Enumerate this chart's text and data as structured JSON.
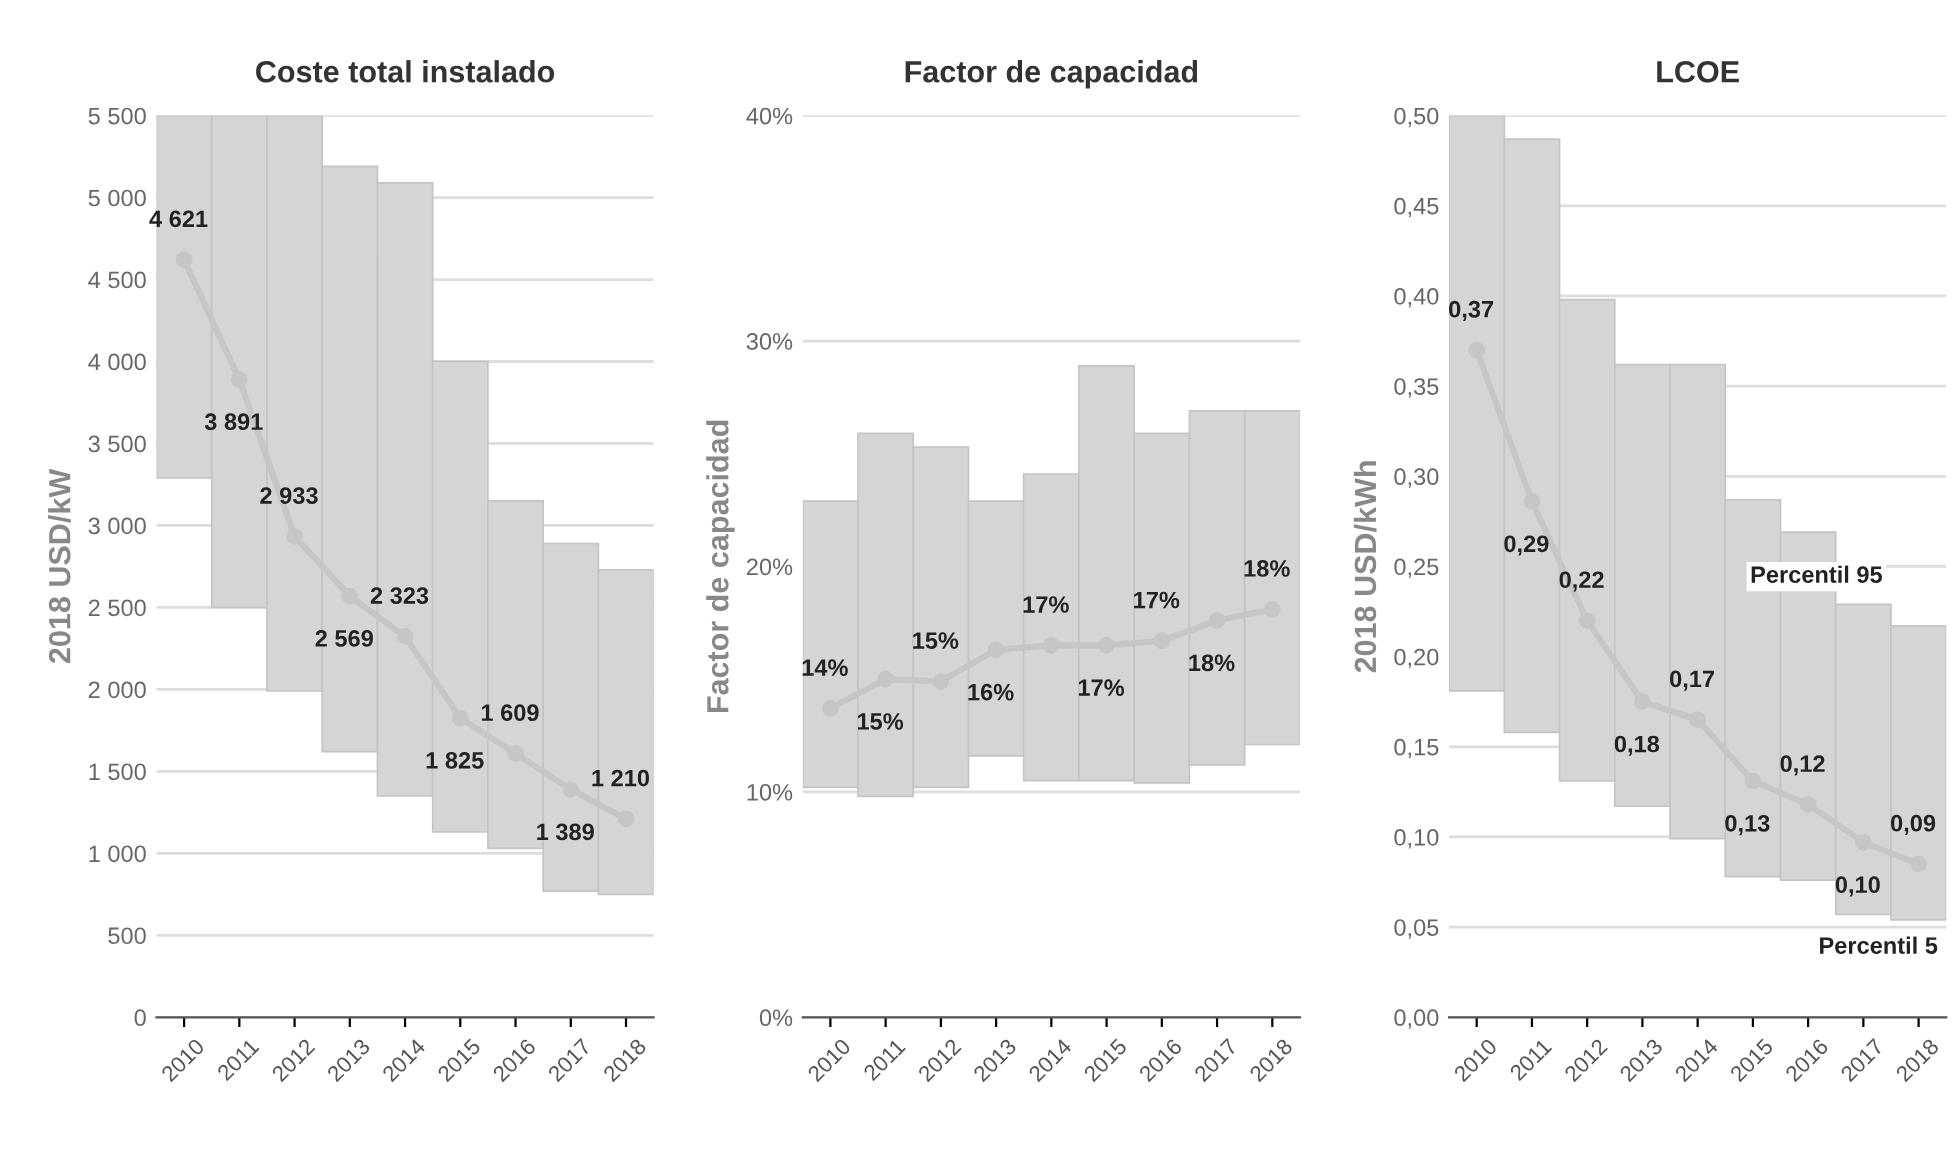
{
  "chart_data": [
    {
      "type": "bar",
      "title": "Coste total instalado",
      "ylabel": "2018 USD/kW",
      "categories": [
        "2010",
        "2011",
        "2012",
        "2013",
        "2014",
        "2015",
        "2016",
        "2017",
        "2018"
      ],
      "ylim": [
        0,
        5500
      ],
      "yticks": [
        0,
        500,
        {
          "value": 1000,
          "label": "1 000"
        },
        {
          "value": 1500,
          "label": "1 500"
        },
        {
          "value": 2000,
          "label": "2 000"
        },
        {
          "value": 2500,
          "label": "2 500"
        },
        {
          "value": 3000,
          "label": "3 000"
        },
        {
          "value": 3500,
          "label": "3 500"
        },
        {
          "value": 4000,
          "label": "4 000"
        },
        {
          "value": 4500,
          "label": "4 500"
        },
        {
          "value": 5000,
          "label": "5 000"
        },
        {
          "value": 5500,
          "label": "5 500"
        }
      ],
      "grid": "y",
      "legend": false,
      "series": [
        {
          "color": "#d4d5d7",
          "base": [
            3290,
            2500,
            1990,
            1620,
            1350,
            1130,
            1030,
            770,
            750
          ],
          "values": [
            2210,
            3000,
            3510,
            3570,
            3740,
            2870,
            2120,
            2120,
            1980
          ]
        },
        {
          "type": "line",
          "color": "#c6c6c6",
          "marker": "circle",
          "values": [
            4621,
            3891,
            2933,
            2569,
            2323,
            1825,
            1609,
            1389,
            1210
          ],
          "value_labels": [
            "4 621",
            "3 891",
            "2 933",
            "2 569",
            "2 323",
            "1 825",
            "1 609",
            "1 389",
            "1 210"
          ]
        }
      ]
    },
    {
      "type": "bar",
      "title": "Factor de capacidad",
      "ylabel": "Factor de capacidad",
      "categories": [
        "2010",
        "2011",
        "2012",
        "2013",
        "2014",
        "2015",
        "2016",
        "2017",
        "2018"
      ],
      "ylim": [
        0,
        40
      ],
      "yticks": [
        {
          "value": 0,
          "label": "0%"
        },
        {
          "value": 10,
          "label": "10%"
        },
        {
          "value": 20,
          "label": "20%"
        },
        {
          "value": 30,
          "label": "30%"
        },
        {
          "value": 40,
          "label": "40%"
        }
      ],
      "grid": "y",
      "legend": false,
      "series": [
        {
          "color": "#d4d5d7",
          "base": [
            10.2,
            9.8,
            10.2,
            11.6,
            10.5,
            10.5,
            10.4,
            11.2,
            12.1
          ],
          "values": [
            12.7,
            16.1,
            15.1,
            11.3,
            13.6,
            18.4,
            15.5,
            15.7,
            14.8
          ]
        },
        {
          "type": "line",
          "color": "#c6c6c6",
          "marker": "circle",
          "values": [
            13.7,
            15.0,
            14.9,
            16.3,
            16.5,
            16.5,
            16.7,
            17.6,
            18.1
          ],
          "value_labels": [
            "14%",
            "15%",
            "15%",
            "16%",
            "17%",
            "17%",
            "17%",
            "18%",
            "18%"
          ]
        }
      ]
    },
    {
      "type": "bar",
      "title": "LCOE",
      "ylabel": "2018 USD/kWh",
      "categories": [
        "2010",
        "2011",
        "2012",
        "2013",
        "2014",
        "2015",
        "2016",
        "2017",
        "2018"
      ],
      "ylim": [
        0,
        0.5
      ],
      "yticks": [
        {
          "value": 0,
          "label": "0,00"
        },
        {
          "value": 0.05,
          "label": "0,05"
        },
        {
          "value": 0.1,
          "label": "0,10"
        },
        {
          "value": 0.15,
          "label": "0,15"
        },
        {
          "value": 0.2,
          "label": "0,20"
        },
        {
          "value": 0.25,
          "label": "0,25"
        },
        {
          "value": 0.3,
          "label": "0,30"
        },
        {
          "value": 0.35,
          "label": "0,35"
        },
        {
          "value": 0.4,
          "label": "0,40"
        },
        {
          "value": 0.45,
          "label": "0,45"
        },
        {
          "value": 0.5,
          "label": "0,50"
        }
      ],
      "grid": "y",
      "legend": false,
      "annotations": [
        {
          "text": "Percentil 95",
          "x": "2017",
          "y": 0.229
        },
        {
          "text": "Percentil 5",
          "x": "2018",
          "y": 0.054
        }
      ],
      "series": [
        {
          "color": "#d4d5d7",
          "base": [
            0.181,
            0.158,
            0.131,
            0.117,
            0.099,
            0.078,
            0.076,
            0.057,
            0.054
          ],
          "values": [
            0.319,
            0.329,
            0.267,
            0.245,
            0.263,
            0.209,
            0.193,
            0.172,
            0.163
          ]
        },
        {
          "type": "line",
          "color": "#c6c6c6",
          "marker": "circle",
          "values": [
            0.37,
            0.286,
            0.22,
            0.175,
            0.165,
            0.131,
            0.118,
            0.097,
            0.085
          ],
          "value_labels": [
            "0,37",
            "0,29",
            "0,22",
            "0,18",
            "0,17",
            "0,13",
            "0,12",
            "0,10",
            "0,09"
          ]
        }
      ]
    }
  ]
}
